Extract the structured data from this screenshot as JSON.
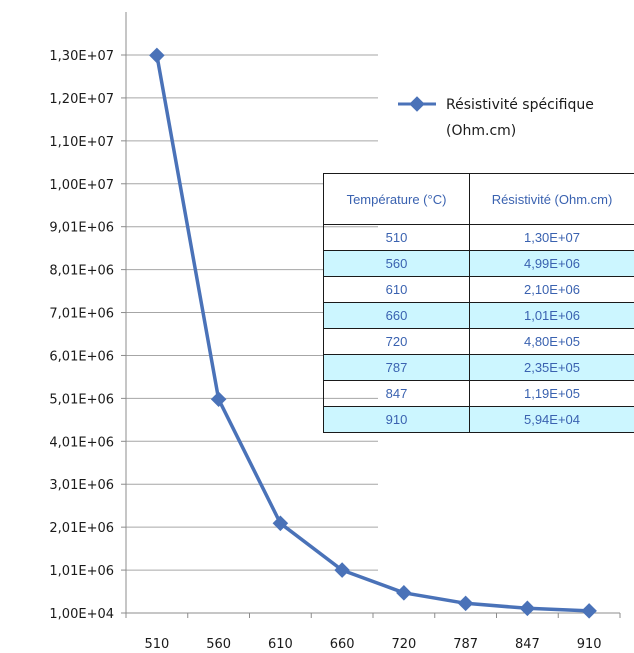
{
  "chart_data": {
    "type": "line",
    "categories": [
      "510",
      "560",
      "610",
      "660",
      "720",
      "787",
      "847",
      "910"
    ],
    "series": [
      {
        "name": "Résistivité spécifique (Ohm.cm)",
        "values": [
          13000000,
          4990000,
          2100000,
          1010000,
          480000,
          235000,
          119000,
          59400
        ],
        "color": "#4a72b8"
      }
    ],
    "y_ticks": [
      "1,00E+04",
      "1,01E+06",
      "2,01E+06",
      "3,01E+06",
      "4,01E+06",
      "5,01E+06",
      "6,01E+06",
      "7,01E+06",
      "8,01E+06",
      "9,01E+06",
      "1,00E+07",
      "1,10E+07",
      "1,20E+07",
      "1,30E+07"
    ],
    "ylim": [
      10000,
      13010000
    ],
    "y_step": 1000000,
    "grid": true,
    "legend": {
      "position": "right",
      "lines": [
        "Résistivité spécifique",
        "(Ohm.cm)"
      ]
    },
    "title": "",
    "xlabel": "",
    "ylabel": ""
  },
  "table": {
    "headers": [
      "Température (°C)",
      "Résistivité (Ohm.cm)"
    ],
    "rows": [
      [
        "510",
        "1,30E+07"
      ],
      [
        "560",
        "4,99E+06"
      ],
      [
        "610",
        "2,10E+06"
      ],
      [
        "660",
        "1,01E+06"
      ],
      [
        "720",
        "4,80E+05"
      ],
      [
        "787",
        "2,35E+05"
      ],
      [
        "847",
        "1,19E+05"
      ],
      [
        "910",
        "5,94E+04"
      ]
    ]
  },
  "colors": {
    "line": "#4a72b8",
    "table_text": "#3a62b0",
    "table_alt_row": "#ccf6ff",
    "grid": "#a6a6a6",
    "axis": "#8c8c8c"
  }
}
